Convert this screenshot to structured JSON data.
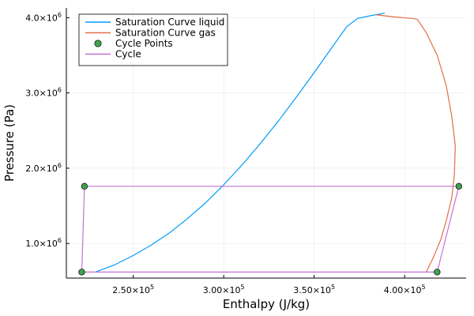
{
  "chart_data": {
    "type": "line",
    "xlabel": "Enthalpy (J/kg)",
    "ylabel": "Pressure (Pa)",
    "xlim": [
      213000,
      434000
    ],
    "ylim": [
      540000,
      4130000
    ],
    "grid": true,
    "legend_position": "top-left",
    "x_ticks": [
      {
        "value": 250000,
        "mantissa": "2.50×10",
        "exp": "5"
      },
      {
        "value": 300000,
        "mantissa": "3.00×10",
        "exp": "5"
      },
      {
        "value": 350000,
        "mantissa": "3.50×10",
        "exp": "5"
      },
      {
        "value": 400000,
        "mantissa": "4.00×10",
        "exp": "5"
      }
    ],
    "y_ticks": [
      {
        "value": 1000000,
        "mantissa": "1.0×10",
        "exp": "6"
      },
      {
        "value": 2000000,
        "mantissa": "2.0×10",
        "exp": "6"
      },
      {
        "value": 3000000,
        "mantissa": "3.0×10",
        "exp": "6"
      },
      {
        "value": 4000000,
        "mantissa": "4.0×10",
        "exp": "6"
      }
    ],
    "series": [
      {
        "name": "Saturation Curve liquid",
        "kind": "line",
        "color": "#009AFA",
        "points": [
          [
            229000,
            620000
          ],
          [
            240000,
            720000
          ],
          [
            250000,
            840000
          ],
          [
            260000,
            980000
          ],
          [
            270000,
            1140000
          ],
          [
            280000,
            1330000
          ],
          [
            290000,
            1540000
          ],
          [
            300000,
            1780000
          ],
          [
            310000,
            2040000
          ],
          [
            320000,
            2320000
          ],
          [
            330000,
            2620000
          ],
          [
            340000,
            2940000
          ],
          [
            350000,
            3270000
          ],
          [
            360000,
            3610000
          ],
          [
            368000,
            3880000
          ],
          [
            374000,
            3990000
          ],
          [
            382000,
            4030000
          ],
          [
            389000,
            4060000
          ]
        ]
      },
      {
        "name": "Saturation Curve gas",
        "kind": "line",
        "color": "#E26F46",
        "points": [
          [
            384000,
            4040000
          ],
          [
            394000,
            4010000
          ],
          [
            404000,
            3990000
          ],
          [
            407000,
            3980000
          ],
          [
            412000,
            3800000
          ],
          [
            418000,
            3500000
          ],
          [
            423000,
            3100000
          ],
          [
            426000,
            2700000
          ],
          [
            428000,
            2300000
          ],
          [
            427500,
            1900000
          ],
          [
            426000,
            1600000
          ],
          [
            423000,
            1300000
          ],
          [
            420000,
            1050000
          ],
          [
            416000,
            820000
          ],
          [
            412000,
            620000
          ]
        ]
      },
      {
        "name": "Cycle Points",
        "kind": "scatter",
        "color": "#3EA44E",
        "points": [
          [
            223000,
            1760000
          ],
          [
            430000,
            1760000
          ],
          [
            418000,
            620000
          ],
          [
            221500,
            620000
          ]
        ]
      },
      {
        "name": "Cycle",
        "kind": "line",
        "color": "#C271D2",
        "points": [
          [
            223000,
            1760000
          ],
          [
            430000,
            1760000
          ],
          [
            418000,
            620000
          ],
          [
            221500,
            620000
          ],
          [
            223000,
            1760000
          ]
        ]
      }
    ]
  }
}
